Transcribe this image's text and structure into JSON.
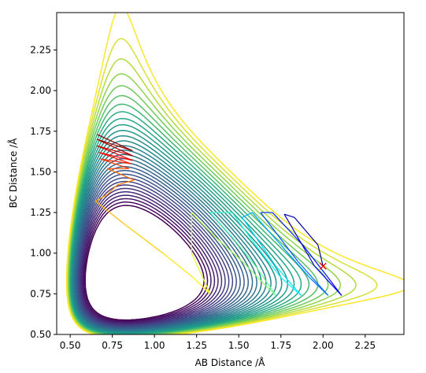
{
  "chart_data": {
    "type": "contour",
    "title": "",
    "xlabel": "AB Distance /Å",
    "ylabel": "BC Distance /Å",
    "xlim": [
      0.42,
      2.48
    ],
    "ylim": [
      0.5,
      2.48
    ],
    "xticks": [
      "0.50",
      "0.75",
      "1.00",
      "1.25",
      "1.50",
      "1.75",
      "2.00",
      "2.25"
    ],
    "yticks": [
      "0.50",
      "0.75",
      "1.00",
      "1.25",
      "1.50",
      "1.75",
      "2.00",
      "2.25"
    ],
    "colormap": "viridis",
    "contour_levels": 30,
    "grid": false,
    "legend": "none",
    "marker": {
      "symbol": "x",
      "color": "#ff0000",
      "x": 2.0,
      "y": 0.92
    },
    "trajectory_colormap": "jet",
    "trajectory_points": [
      [
        0.66,
        1.73
      ],
      [
        0.87,
        1.63
      ],
      [
        0.66,
        1.7
      ],
      [
        0.87,
        1.6
      ],
      [
        0.66,
        1.66
      ],
      [
        0.87,
        1.57
      ],
      [
        0.67,
        1.62
      ],
      [
        0.86,
        1.55
      ],
      [
        0.68,
        1.58
      ],
      [
        0.85,
        1.52
      ],
      [
        0.72,
        1.52
      ],
      [
        0.88,
        1.45
      ],
      [
        0.78,
        1.42
      ],
      [
        0.72,
        1.36
      ],
      [
        0.65,
        1.32
      ],
      [
        0.82,
        1.18
      ],
      [
        1.05,
        1.0
      ],
      [
        1.23,
        0.85
      ],
      [
        1.33,
        0.75
      ],
      [
        1.3,
        0.82
      ],
      [
        1.22,
        1.0
      ],
      [
        1.22,
        1.25
      ],
      [
        1.36,
        1.1
      ],
      [
        1.52,
        0.95
      ],
      [
        1.66,
        0.8
      ],
      [
        1.72,
        0.74
      ],
      [
        1.6,
        0.92
      ],
      [
        1.46,
        1.1
      ],
      [
        1.33,
        1.25
      ],
      [
        1.46,
        1.25
      ],
      [
        1.6,
        1.05
      ],
      [
        1.75,
        0.85
      ],
      [
        1.87,
        0.74
      ],
      [
        1.72,
        0.92
      ],
      [
        1.52,
        1.22
      ],
      [
        1.58,
        1.25
      ],
      [
        1.75,
        1.05
      ],
      [
        1.92,
        0.85
      ],
      [
        2.03,
        0.74
      ],
      [
        1.85,
        0.95
      ],
      [
        1.63,
        1.25
      ],
      [
        1.7,
        1.25
      ],
      [
        1.88,
        1.05
      ],
      [
        2.03,
        0.85
      ],
      [
        2.11,
        0.74
      ],
      [
        1.95,
        0.92
      ],
      [
        1.77,
        1.24
      ],
      [
        1.83,
        1.22
      ],
      [
        1.97,
        1.05
      ],
      [
        2.0,
        0.92
      ]
    ]
  }
}
